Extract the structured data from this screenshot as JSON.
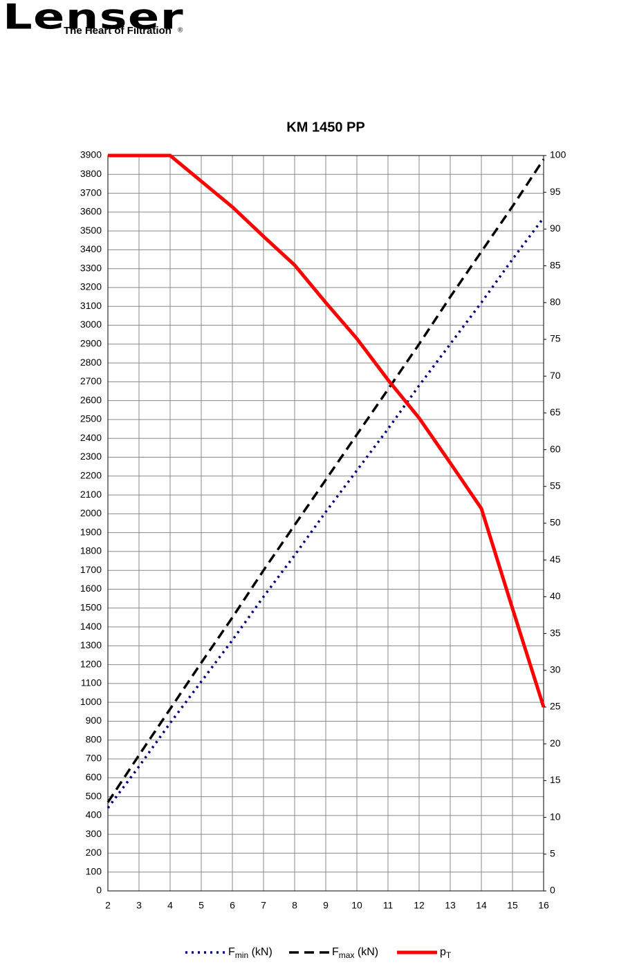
{
  "header": {
    "brand": "Lenser",
    "registered": "®",
    "tagline": "The Heart of Filtration"
  },
  "chart_data": {
    "type": "line",
    "title": "KM 1450 PP",
    "x": [
      2,
      3,
      4,
      5,
      6,
      7,
      8,
      9,
      10,
      11,
      12,
      13,
      14,
      15,
      16
    ],
    "xlim": [
      2,
      16
    ],
    "xticks": [
      2,
      3,
      4,
      5,
      6,
      7,
      8,
      9,
      10,
      11,
      12,
      13,
      14,
      15,
      16
    ],
    "ylim": [
      0,
      3900
    ],
    "yticks": [
      0,
      100,
      200,
      300,
      400,
      500,
      600,
      700,
      800,
      900,
      1000,
      1100,
      1200,
      1300,
      1400,
      1500,
      1600,
      1700,
      1800,
      1900,
      2000,
      2100,
      2200,
      2300,
      2400,
      2500,
      2600,
      2700,
      2800,
      2900,
      3000,
      3100,
      3200,
      3300,
      3400,
      3500,
      3600,
      3700,
      3800,
      3900
    ],
    "y2lim": [
      0,
      100
    ],
    "y2ticks": [
      0,
      5,
      10,
      15,
      20,
      25,
      30,
      35,
      40,
      45,
      50,
      55,
      60,
      65,
      70,
      75,
      80,
      85,
      90,
      95,
      100
    ],
    "grid": true,
    "legend": "bottom",
    "series": [
      {
        "name": "Fmin (kN)",
        "color": "#000080",
        "line_style": "dotted",
        "values": [
          440,
          660,
          890,
          1110,
          1330,
          1560,
          1780,
          2010,
          2230,
          2450,
          2680,
          2900,
          3120,
          3350,
          3570
        ]
      },
      {
        "name": "Fmax (kN)",
        "color": "#000000",
        "line_style": "dashed",
        "values": [
          470,
          720,
          965,
          1210,
          1450,
          1700,
          1940,
          2180,
          2420,
          2660,
          2900,
          3150,
          3390,
          3630,
          3880
        ]
      },
      {
        "name": "pT",
        "color": "#ff0000",
        "line_style": "solid",
        "axis": "y2",
        "values": [
          100,
          100,
          100,
          96.5,
          93,
          89,
          85.1,
          80,
          75.1,
          69.5,
          64.3,
          58.2,
          52,
          38.4,
          25
        ]
      }
    ]
  }
}
